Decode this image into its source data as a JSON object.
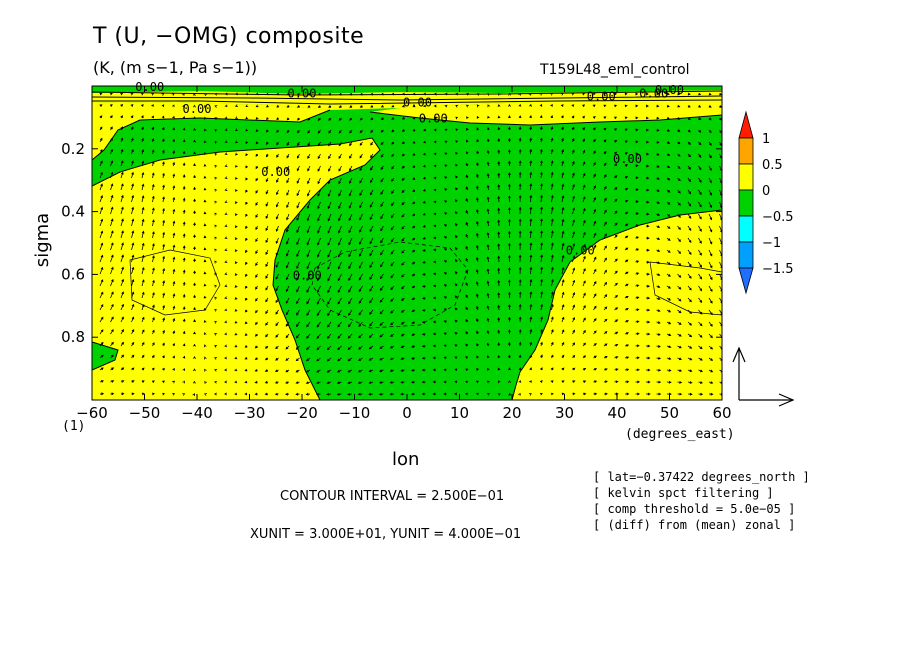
{
  "header": {
    "title": "T (U, −OMG) composite",
    "subtitle": "(K, (m s−1, Pa s−1))",
    "run_name": "T159L48_eml_control"
  },
  "footer": {
    "contour_interval": "CONTOUR INTERVAL = 2.500E−01",
    "units": "XUNIT = 3.000E+01, YUNIT = 4.000E−01"
  },
  "notes": [
    "[ lat=−0.37422 degrees_north ]",
    "[ kelvin spct filtering ]",
    "[ comp threshold = 5.0e−05 ]",
    "[ (diff) from (mean) zonal ]"
  ],
  "colors": {
    "green": "#00d200",
    "yellow": "#ffff00",
    "orange": "#ffa500",
    "red": "#ff1e00",
    "cyan": "#00ffff",
    "blue": "#00a0ff",
    "deepblue": "#1e6eff"
  },
  "chart_data": {
    "type": "heatmap",
    "xlabel": "lon",
    "xunit": "(degrees_east)",
    "ylabel": "sigma",
    "yaxis_corner_label": "(1)",
    "xlim": [
      -60,
      60
    ],
    "ylim": [
      1.0,
      0.0
    ],
    "x_ticks": [
      -60,
      -50,
      -40,
      -30,
      -20,
      -10,
      0,
      10,
      20,
      30,
      40,
      50,
      60
    ],
    "x_tick_labels": [
      "−60",
      "−50",
      "−40",
      "−30",
      "−20",
      "−10",
      "0",
      "10",
      "20",
      "30",
      "40",
      "50",
      "60"
    ],
    "y_ticks": [
      0.2,
      0.4,
      0.6,
      0.8
    ],
    "y_tick_labels": [
      "0.2",
      "0.4",
      "0.6",
      "0.8"
    ],
    "colorbar": {
      "levels": [
        "1",
        "0.5",
        "0",
        "−0.5",
        "−1",
        "−1.5"
      ],
      "fill_colors": [
        "#ff1e00",
        "#ffa500",
        "#ffff00",
        "#00d200",
        "#00ffff",
        "#00a0ff",
        "#1e6eff"
      ]
    },
    "contour_labels": [
      {
        "lon": -49,
        "sigma": 0.0,
        "text": "0.00"
      },
      {
        "lon": -40,
        "sigma": 0.07,
        "text": "0.00"
      },
      {
        "lon": -20,
        "sigma": 0.02,
        "text": "0.00"
      },
      {
        "lon": 2,
        "sigma": 0.05,
        "text": "0.00"
      },
      {
        "lon": 5,
        "sigma": 0.1,
        "text": "0.00"
      },
      {
        "lon": 37,
        "sigma": 0.03,
        "text": "0.00"
      },
      {
        "lon": 47,
        "sigma": 0.02,
        "text": "0.00"
      },
      {
        "lon": 50,
        "sigma": 0.01,
        "text": "0.00"
      },
      {
        "lon": -25,
        "sigma": 0.27,
        "text": "0.00"
      },
      {
        "lon": -19,
        "sigma": 0.6,
        "text": "0.00"
      },
      {
        "lon": 33,
        "sigma": 0.52,
        "text": "0.00"
      },
      {
        "lon": 42,
        "sigma": 0.23,
        "text": "0.00"
      }
    ],
    "regions": {
      "negative_fill": "green",
      "positive_fill": "yellow",
      "description_values": "green = < 0 K, yellow = 0 to 0.5 K"
    },
    "reference_vector": {
      "u": 30.0,
      "omega": 0.4
    }
  }
}
